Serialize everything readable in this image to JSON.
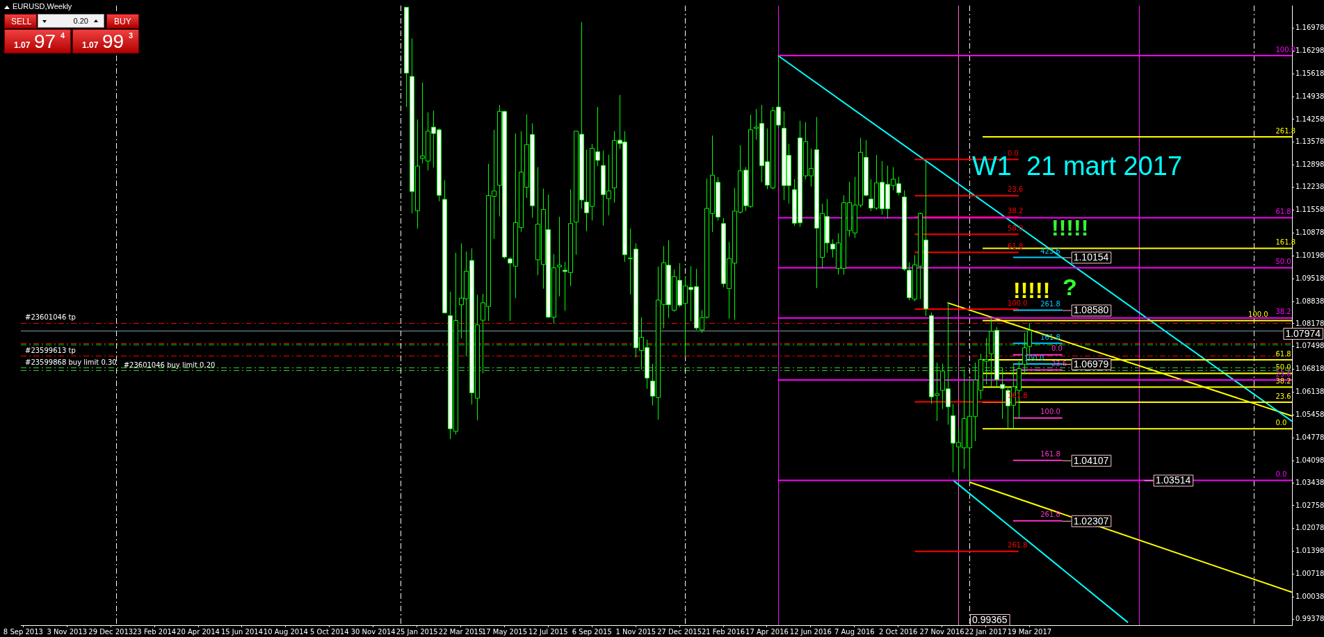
{
  "chart_data": {
    "type": "candlestick",
    "title": "EURUSD,Weekly",
    "subtitle": "W1  21 mart 2017",
    "color": "#00ff00",
    "colors": [
      "#ffffff",
      "#ffffff",
      "#000000",
      "#000000",
      "#000000",
      "#ffffff",
      "#ffffff",
      "#ffffff",
      "#ffffff",
      "#000000",
      "#000000",
      "#000000",
      "#ffffff",
      "#000000",
      "#000000",
      "#000000",
      "#000000",
      "#000000",
      "#ffffff",
      "#ffffff",
      "#000000",
      "#000000",
      "#000000",
      "#ffffff",
      "#000000",
      "#000000",
      "#ffffff",
      "#000000",
      "#000000",
      "#ffffff",
      "#000000",
      "#000000",
      "#ffffff",
      "#ffffff",
      "#000000",
      "#ffffff",
      "#ffffff",
      "#000000",
      "#000000",
      "#ffffff",
      "#ffffff",
      "#000000",
      "#ffffff",
      "#000000",
      "#ffffff",
      "#ffffff",
      "#000000",
      "#000000",
      "#ffffff",
      "#000000",
      "#ffffff",
      "#000000",
      "#ffffff",
      "#ffffff",
      "#000000",
      "#000000",
      "#000000",
      "#ffffff",
      "#ffffff",
      "#000000",
      "#000000",
      "#000000",
      "#ffffff",
      "#000000",
      "#000000",
      "#ffffff",
      "#ffffff",
      "#000000",
      "#ffffff",
      "#ffffff",
      "#ffffff",
      "#ffffff",
      "#ffffff",
      "#000000",
      "#000000",
      "#ffffff",
      "#000000",
      "#ffffff",
      "#ffffff",
      "#000000",
      "#000000",
      "#000000",
      "#000000",
      "#000000",
      "#ffffff",
      "#ffffff",
      "#000000",
      "#ffffff",
      "#ffffff",
      "#000000",
      "#ffffff",
      "#ffffff",
      "#ffffff",
      "#000000",
      "#000000",
      "#ffffff",
      "#ffffff",
      "#000000",
      "#000000",
      "#ffffff",
      "#ffffff",
      "#000000",
      "#000000",
      "#000000",
      "#000000",
      "#000000",
      "#000000",
      "#000000",
      "#ffffff",
      "#ffffff",
      "#ffffff",
      "#000000",
      "#000000",
      "#000000",
      "#000000"
    ],
    "x": [
      "2015-01-11",
      "2015-01-18",
      "2015-01-25",
      "2015-02-01",
      "2015-02-08",
      "2015-02-15",
      "2015-02-22",
      "2015-03-01",
      "2015-03-08",
      "2015-03-15",
      "2015-03-22",
      "2015-03-29",
      "2015-04-05",
      "2015-04-12",
      "2015-04-19",
      "2015-04-26",
      "2015-05-03",
      "2015-05-10",
      "2015-05-17",
      "2015-05-24",
      "2015-05-31",
      "2015-06-07",
      "2015-06-14",
      "2015-06-21",
      "2015-06-28",
      "2015-07-05",
      "2015-07-12",
      "2015-07-19",
      "2015-07-26",
      "2015-08-02",
      "2015-08-09",
      "2015-08-16",
      "2015-08-23",
      "2015-08-30",
      "2015-09-06",
      "2015-09-13",
      "2015-09-20",
      "2015-09-27",
      "2015-10-04",
      "2015-10-11",
      "2015-10-18",
      "2015-10-25",
      "2015-11-01",
      "2015-11-08",
      "2015-11-15",
      "2015-11-22",
      "2015-11-29",
      "2015-12-06",
      "2015-12-13",
      "2015-12-20",
      "2015-12-27",
      "2016-01-03",
      "2016-01-10",
      "2016-01-17",
      "2016-01-24",
      "2016-01-31",
      "2016-02-07",
      "2016-02-14",
      "2016-02-21",
      "2016-02-28",
      "2016-03-06",
      "2016-03-13",
      "2016-03-20",
      "2016-03-27",
      "2016-04-03",
      "2016-04-10",
      "2016-04-17",
      "2016-04-24",
      "2016-05-01",
      "2016-05-08",
      "2016-05-15",
      "2016-05-22",
      "2016-05-29",
      "2016-06-05",
      "2016-06-12",
      "2016-06-19",
      "2016-06-26",
      "2016-07-03",
      "2016-07-10",
      "2016-07-17",
      "2016-07-24",
      "2016-07-31",
      "2016-08-07",
      "2016-08-14",
      "2016-08-21",
      "2016-08-28",
      "2016-09-04",
      "2016-09-11",
      "2016-09-18",
      "2016-09-25",
      "2016-10-02",
      "2016-10-09",
      "2016-10-16",
      "2016-10-23",
      "2016-10-30",
      "2016-11-06",
      "2016-11-13",
      "2016-11-20",
      "2016-11-27",
      "2016-12-04",
      "2016-12-11",
      "2016-12-18",
      "2016-12-25",
      "2017-01-01",
      "2017-01-08",
      "2017-01-15",
      "2017-01-22",
      "2017-01-29",
      "2017-02-05",
      "2017-02-12",
      "2017-02-19",
      "2017-02-26",
      "2017-03-05",
      "2017-03-12",
      "2017-03-19"
    ],
    "ohlc": [
      [
        1.176,
        1.176,
        1.1463,
        1.1564
      ],
      [
        1.1554,
        1.1667,
        1.1146,
        1.1211
      ],
      [
        1.1154,
        1.1426,
        1.1101,
        1.1287
      ],
      [
        1.131,
        1.1536,
        1.1295,
        1.1317
      ],
      [
        1.1302,
        1.1447,
        1.1274,
        1.1391
      ],
      [
        1.1403,
        1.1452,
        1.1283,
        1.1384
      ],
      [
        1.1395,
        1.1399,
        1.1182,
        1.12
      ],
      [
        1.1188,
        1.1245,
        1.0848,
        1.085
      ],
      [
        1.0842,
        1.0913,
        1.0474,
        1.0505
      ],
      [
        1.0497,
        1.1029,
        1.0488,
        1.0827
      ],
      [
        1.0874,
        1.1057,
        1.0774,
        1.0894
      ],
      [
        1.0892,
        1.1033,
        1.0721,
        1.0974
      ],
      [
        1.1006,
        1.1042,
        1.0577,
        1.0612
      ],
      [
        1.0596,
        1.0904,
        1.053,
        1.0814
      ],
      [
        1.0828,
        1.0907,
        1.067,
        1.088
      ],
      [
        1.0869,
        1.1294,
        1.0826,
        1.1199
      ],
      [
        1.1197,
        1.1395,
        1.107,
        1.1213
      ],
      [
        1.123,
        1.1469,
        1.1137,
        1.145
      ],
      [
        1.145,
        1.1452,
        1.1011,
        1.1016
      ],
      [
        1.1011,
        1.1016,
        1.0826,
        1.0998
      ],
      [
        1.0989,
        1.1384,
        1.0894,
        1.1119
      ],
      [
        1.1104,
        1.1391,
        1.1091,
        1.1269
      ],
      [
        1.1224,
        1.1441,
        1.1192,
        1.1351
      ],
      [
        1.1381,
        1.1414,
        1.1133,
        1.1169
      ],
      [
        1.1008,
        1.1284,
        1.0962,
        1.1114
      ],
      [
        1.0994,
        1.122,
        1.0922,
        1.1158
      ],
      [
        1.1098,
        1.1202,
        1.0835,
        1.0837
      ],
      [
        1.0837,
        1.1025,
        1.0818,
        1.0984
      ],
      [
        1.0987,
        1.1136,
        1.0899,
        1.0992
      ],
      [
        1.0977,
        1.1002,
        1.0856,
        1.0973
      ],
      [
        1.097,
        1.1218,
        1.093,
        1.1116
      ],
      [
        1.112,
        1.1391,
        1.1023,
        1.1391
      ],
      [
        1.1382,
        1.1716,
        1.116,
        1.1186
      ],
      [
        1.118,
        1.1336,
        1.1093,
        1.1148
      ],
      [
        1.1167,
        1.1353,
        1.1125,
        1.134
      ],
      [
        1.133,
        1.1463,
        1.1287,
        1.1304
      ],
      [
        1.1289,
        1.1333,
        1.111,
        1.1202
      ],
      [
        1.119,
        1.1321,
        1.114,
        1.1213
      ],
      [
        1.1222,
        1.1391,
        1.1178,
        1.1363
      ],
      [
        1.1364,
        1.1499,
        1.1338,
        1.1354
      ],
      [
        1.1359,
        1.1391,
        1.1002,
        1.1023
      ],
      [
        1.1012,
        1.1101,
        1.0905,
        1.1013
      ],
      [
        1.104,
        1.1057,
        1.0717,
        1.0746
      ],
      [
        1.0738,
        1.0837,
        1.0681,
        1.0777
      ],
      [
        1.0747,
        1.077,
        1.0624,
        1.0656
      ],
      [
        1.0647,
        1.0698,
        1.0574,
        1.0602
      ],
      [
        1.0598,
        1.0988,
        1.0532,
        1.0888
      ],
      [
        1.0875,
        1.1049,
        1.0804,
        1.0999
      ],
      [
        1.0992,
        1.1066,
        1.0835,
        1.0874
      ],
      [
        1.0858,
        1.0979,
        1.0854,
        1.0958
      ],
      [
        1.0947,
        1.0998,
        1.0867,
        1.0873
      ],
      [
        1.0878,
        1.0956,
        1.0719,
        1.093
      ],
      [
        1.0926,
        1.0989,
        1.0825,
        1.0919
      ],
      [
        1.0928,
        1.0981,
        1.0799,
        1.0805
      ],
      [
        1.0799,
        1.0858,
        1.0791,
        1.0836
      ],
      [
        1.0837,
        1.125,
        1.0833,
        1.1161
      ],
      [
        1.1146,
        1.1378,
        1.1091,
        1.126
      ],
      [
        1.1239,
        1.1254,
        1.1125,
        1.1135
      ],
      [
        1.1116,
        1.1133,
        1.0926,
        1.0937
      ],
      [
        1.0922,
        1.1061,
        1.0833,
        1.1012
      ],
      [
        1.0998,
        1.1222,
        1.0829,
        1.1153
      ],
      [
        1.115,
        1.1349,
        1.1146,
        1.1273
      ],
      [
        1.1275,
        1.1284,
        1.1153,
        1.1169
      ],
      [
        1.1167,
        1.144,
        1.1163,
        1.1395
      ],
      [
        1.1399,
        1.1457,
        1.1366,
        1.1403
      ],
      [
        1.1414,
        1.1469,
        1.1239,
        1.1288
      ],
      [
        1.13,
        1.1399,
        1.1218,
        1.123
      ],
      [
        1.1222,
        1.1463,
        1.1218,
        1.1452
      ],
      [
        1.1463,
        1.1616,
        1.1399,
        1.1409
      ],
      [
        1.14,
        1.145,
        1.1186,
        1.1229
      ],
      [
        1.1319,
        1.1353,
        1.1175,
        1.1229
      ],
      [
        1.1217,
        1.1248,
        1.1109,
        1.1117
      ],
      [
        1.1371,
        1.1422,
        1.1106,
        1.1118
      ],
      [
        1.1258,
        1.1418,
        1.1248,
        1.136
      ],
      [
        1.1258,
        1.1339,
        1.1226,
        1.128
      ],
      [
        1.1336,
        1.1433,
        1.0924,
        1.1102
      ],
      [
        1.1015,
        1.1175,
        1.0982,
        1.1146
      ],
      [
        1.1137,
        1.1189,
        1.1029,
        1.1058
      ],
      [
        1.1055,
        1.1069,
        1.1015,
        1.104
      ],
      [
        1.0982,
        1.1087,
        1.0964,
        1.1058
      ],
      [
        1.0982,
        1.12,
        1.0964,
        1.1178
      ],
      [
        1.1095,
        1.124,
        1.1077,
        1.1178
      ],
      [
        1.1088,
        1.1255,
        1.1073,
        1.1171
      ],
      [
        1.1171,
        1.1371,
        1.1164,
        1.1328
      ],
      [
        1.1313,
        1.1364,
        1.1197,
        1.12
      ],
      [
        1.1189,
        1.1248,
        1.1153,
        1.1162
      ],
      [
        1.1162,
        1.132,
        1.1157,
        1.1237
      ],
      [
        1.1239,
        1.1302,
        1.1142,
        1.116
      ],
      [
        1.1233,
        1.1288,
        1.1131,
        1.116
      ],
      [
        1.1229,
        1.1284,
        1.1215,
        1.1248
      ],
      [
        1.1235,
        1.1255,
        1.12,
        1.1208
      ],
      [
        1.1195,
        1.1215,
        1.0975,
        1.098
      ],
      [
        1.0977,
        1.1,
        1.0888,
        1.0895
      ],
      [
        1.0891,
        1.1022,
        1.0884,
        1.0993
      ],
      [
        1.0989,
        1.1149,
        1.0891,
        1.1146
      ],
      [
        1.1067,
        1.13,
        1.084,
        1.0862
      ],
      [
        1.0842,
        1.0851,
        1.0579,
        1.06
      ],
      [
        1.0604,
        1.0702,
        1.0528,
        1.0609
      ],
      [
        1.0619,
        1.0699,
        1.0564,
        1.0677
      ],
      [
        1.0624,
        1.088,
        1.0517,
        1.057
      ],
      [
        1.0544,
        1.0579,
        1.0376,
        1.0462
      ],
      [
        1.0451,
        1.0506,
        1.0352,
        1.0464
      ],
      [
        1.0448,
        1.0681,
        1.0385,
        1.0535
      ],
      [
        1.0448,
        1.0655,
        1.0346,
        1.0542
      ],
      [
        1.0541,
        1.0702,
        1.0468,
        1.065
      ],
      [
        1.0619,
        1.0728,
        1.0593,
        1.0711
      ],
      [
        1.0706,
        1.0775,
        1.0637,
        1.0711
      ],
      [
        1.0728,
        1.0835,
        1.063,
        1.0795
      ],
      [
        1.0798,
        1.0808,
        1.0631,
        1.0651
      ],
      [
        1.0637,
        1.0688,
        1.0534,
        1.0625
      ],
      [
        1.0619,
        1.063,
        1.0506,
        1.0573
      ],
      [
        1.0575,
        1.0695,
        1.0506,
        1.063
      ],
      [
        1.0619,
        1.0706,
        1.0535,
        1.0684
      ],
      [
        1.0697,
        1.0791,
        1.0666,
        1.0746
      ],
      [
        1.075,
        1.082,
        1.0728,
        1.0797
      ]
    ],
    "series": [
      {
        "type": "line",
        "color": "#ff00ff",
        "x": [
          "2016-05-01",
          "2018-02-18"
        ],
        "values": [
          1.1616,
          1.1616
        ]
      },
      {
        "type": "line",
        "color": "#ff00ff",
        "x": [
          "2016-05-01",
          "2018-02-18"
        ],
        "values": [
          1.1133,
          1.1133
        ]
      },
      {
        "type": "line",
        "color": "#ff00ff",
        "x": [
          "2016-05-01",
          "2018-02-18"
        ],
        "values": [
          1.0984,
          1.0984
        ]
      },
      {
        "type": "line",
        "color": "#ff00ff",
        "x": [
          "2016-05-01",
          "2018-02-18"
        ],
        "values": [
          1.0835,
          1.0835
        ]
      },
      {
        "type": "line",
        "color": "#ff00ff",
        "x": [
          "2016-05-01",
          "2018-02-18"
        ],
        "values": [
          1.065,
          1.065
        ]
      },
      {
        "type": "line",
        "color": "#ff00ff",
        "x": [
          "2016-05-01",
          "2017-08-13",
          "2018-02-18"
        ],
        "values": [
          1.03514,
          1.03514,
          1.03514
        ]
      },
      {
        "type": "line",
        "color": "#ff0000",
        "x": [
          "2016-10-23",
          "2017-03-05"
        ],
        "values": [
          1.1307,
          1.1307
        ]
      },
      {
        "type": "line",
        "color": "#ff0000",
        "x": [
          "2016-10-23",
          "2017-03-05"
        ],
        "values": [
          1.1199,
          1.1199
        ]
      },
      {
        "type": "line",
        "color": "#ff0000",
        "x": [
          "2016-10-23",
          "2017-03-05"
        ],
        "values": [
          1.1135,
          1.1135
        ]
      },
      {
        "type": "line",
        "color": "#ff0000",
        "x": [
          "2016-10-23",
          "2017-03-05"
        ],
        "values": [
          1.1084,
          1.1084
        ]
      },
      {
        "type": "line",
        "color": "#ff0000",
        "x": [
          "2016-10-23",
          "2017-03-05"
        ],
        "values": [
          1.103,
          1.103
        ]
      },
      {
        "type": "line",
        "color": "#ff0000",
        "x": [
          "2016-10-23",
          "2017-03-05"
        ],
        "values": [
          1.0861,
          1.0861
        ]
      },
      {
        "type": "line",
        "color": "#ff0000",
        "x": [
          "2016-10-23",
          "2017-03-05"
        ],
        "values": [
          1.0585,
          1.0585
        ]
      },
      {
        "type": "line",
        "color": "#ff0000",
        "x": [
          "2016-10-23",
          "2017-03-05"
        ],
        "values": [
          1.014,
          1.014
        ]
      },
      {
        "type": "line",
        "color": "#ffff00",
        "x": [
          "2017-01-18",
          "2018-02-18"
        ],
        "values": [
          1.1374,
          1.1374
        ]
      },
      {
        "type": "line",
        "color": "#ffff00",
        "x": [
          "2017-01-18",
          "2018-02-18"
        ],
        "values": [
          1.1042,
          1.1042
        ]
      },
      {
        "type": "line",
        "color": "#ffff00",
        "x": [
          "2017-01-18",
          "2018-02-18"
        ],
        "values": [
          1.0827,
          1.0827
        ]
      },
      {
        "type": "line",
        "color": "#ffff00",
        "x": [
          "2017-01-18",
          "2018-02-18"
        ],
        "values": [
          1.071,
          1.071
        ]
      },
      {
        "type": "line",
        "color": "#ffff00",
        "x": [
          "2017-01-18",
          "2018-02-18"
        ],
        "values": [
          1.067,
          1.067
        ]
      },
      {
        "type": "line",
        "color": "#ffff00",
        "x": [
          "2017-01-18",
          "2018-02-18"
        ],
        "values": [
          1.0629,
          1.0629
        ]
      },
      {
        "type": "line",
        "color": "#ffff00",
        "x": [
          "2017-01-18",
          "2018-02-18"
        ],
        "values": [
          1.0584,
          1.0584
        ]
      },
      {
        "type": "line",
        "color": "#ffff00",
        "x": [
          "2017-01-18",
          "2018-02-18"
        ],
        "values": [
          1.0505,
          1.0505
        ]
      },
      {
        "type": "line",
        "color": "#ff33cc",
        "x": [
          "2017-02-26",
          "2017-04-30"
        ],
        "values": [
          1.0725,
          1.0725
        ]
      },
      {
        "type": "line",
        "color": "#ff33cc",
        "x": [
          "2017-02-26",
          "2017-04-30"
        ],
        "values": [
          1.068,
          1.068
        ]
      },
      {
        "type": "line",
        "color": "#ff33cc",
        "x": [
          "2017-02-26",
          "2017-04-30"
        ],
        "values": [
          1.0537,
          1.0537
        ]
      },
      {
        "type": "line",
        "color": "#ff33cc",
        "x": [
          "2017-02-26",
          "2017-04-30"
        ],
        "values": [
          1.04107,
          1.04107
        ]
      },
      {
        "type": "line",
        "color": "#ff33cc",
        "x": [
          "2017-02-26",
          "2017-04-30"
        ],
        "values": [
          1.02307,
          1.02307
        ]
      },
      {
        "type": "line",
        "color": "#00ccff",
        "x": [
          "2017-02-26",
          "2017-04-30"
        ],
        "values": [
          1.10154,
          1.10154
        ]
      },
      {
        "type": "line",
        "color": "#00ccff",
        "x": [
          "2017-02-26",
          "2017-04-30"
        ],
        "values": [
          1.0858,
          1.0858
        ]
      },
      {
        "type": "line",
        "color": "#00ccff",
        "x": [
          "2017-02-26",
          "2017-04-30"
        ],
        "values": [
          1.0759,
          1.0759
        ]
      },
      {
        "type": "line",
        "color": "#00ccff",
        "x": [
          "2017-02-26",
          "2017-04-30"
        ],
        "values": [
          1.06979,
          1.06979
        ]
      },
      {
        "type": "line",
        "color": "#00ffff",
        "x": [
          "2016-05-01",
          "2018-02-18"
        ],
        "values": [
          1.1616,
          1.0527
        ]
      },
      {
        "type": "line",
        "color": "#00ffff",
        "x": [
          "2016-12-11",
          "2017-07-23"
        ],
        "values": [
          1.0352,
          0.9928
        ]
      },
      {
        "type": "line",
        "color": "#ffff00",
        "x": [
          "2016-12-04",
          "2018-02-18"
        ],
        "values": [
          1.088,
          1.0543
        ]
      },
      {
        "type": "line",
        "color": "#ffff00",
        "x": [
          "2017-01-01",
          "2018-02-18"
        ],
        "values": [
          1.0346,
          1.0018
        ]
      }
    ],
    "ref_lines": [
      {
        "axis": "y",
        "value": 1.082,
        "label": "#23601046 tp",
        "color": "#ff0000",
        "line_style": "dashed"
      },
      {
        "axis": "y",
        "value": 1.07974,
        "color": "#8899aa"
      },
      {
        "axis": "y",
        "value": 1.076,
        "color": "#ff0000",
        "line_style": "dashed"
      },
      {
        "axis": "y",
        "value": 1.0756,
        "color": "#00cc00",
        "line_style": "dashed"
      },
      {
        "axis": "y",
        "value": 1.0722,
        "label": "#23599613 tp",
        "color": "#ff0000",
        "line_style": "dashed"
      },
      {
        "axis": "y",
        "value": 1.0687,
        "label": "#23599868 buy limit 0.30",
        "color": "#33cc33",
        "line_style": "dashed"
      },
      {
        "axis": "y",
        "value": 1.0679,
        "label": "#23601046 buy limit 0.20",
        "color": "#33cc33",
        "line_style": "dashed"
      },
      {
        "axis": "x",
        "value": "2014-01-05",
        "color": "#ffffff",
        "line_style": "dashed"
      },
      {
        "axis": "x",
        "value": "2015-01-04",
        "color": "#ffffff",
        "line_style": "dashed"
      },
      {
        "axis": "x",
        "value": "2016-01-03",
        "color": "#ffffff",
        "line_style": "dashed"
      },
      {
        "axis": "x",
        "value": "2017-01-01",
        "color": "#ffffff",
        "line_style": "dashed"
      },
      {
        "axis": "x",
        "value": "2017-12-31",
        "color": "#ffffff",
        "line_style": "dashed"
      },
      {
        "axis": "x",
        "value": "2016-05-01",
        "color": "#ff00ff"
      },
      {
        "axis": "x",
        "value": "2016-12-18",
        "color": "#ff66cc"
      },
      {
        "axis": "x",
        "value": "2017-08-06",
        "color": "#ff00ff"
      }
    ],
    "annotations": [
      "!!!!!",
      "!!!!!",
      "?",
      "SELL",
      "0.20",
      "BUY",
      "1.07",
      "97",
      "4",
      "1.07",
      "99",
      "3",
      {
        "text": "100.0",
        "x": "2018-01-28",
        "y": 1.1616
      },
      {
        "text": "61.8",
        "x": "2018-01-28",
        "y": 1.1133
      },
      {
        "text": "50.0",
        "x": "2018-01-28",
        "y": 1.0984
      },
      {
        "text": "38.2",
        "x": "2018-01-28",
        "y": 1.0835
      },
      {
        "text": "23.6",
        "x": "2018-01-28",
        "y": 1.065
      },
      {
        "text": "0.0",
        "x": "2018-01-28",
        "y": 1.03514
      },
      {
        "text": "0.0",
        "x": "2017-02-19",
        "y": 1.1307
      },
      {
        "text": "23.6",
        "x": "2017-02-19",
        "y": 1.1199
      },
      {
        "text": "38.2",
        "x": "2017-02-19",
        "y": 1.1135
      },
      {
        "text": "50.0",
        "x": "2017-02-19",
        "y": 1.1084
      },
      {
        "text": "61.8",
        "x": "2017-02-19",
        "y": 1.103
      },
      {
        "text": "100.0",
        "x": "2017-02-19",
        "y": 1.0861
      },
      {
        "text": "161.8",
        "x": "2017-02-19",
        "y": 1.0585
      },
      {
        "text": "261.8",
        "x": "2017-02-19",
        "y": 1.014
      },
      {
        "text": "261.8",
        "x": "2018-01-28",
        "y": 1.1374
      },
      {
        "text": "161.8",
        "x": "2018-01-28",
        "y": 1.1042
      },
      {
        "text": "100.0",
        "x": "2017-12-24",
        "y": 1.0827
      },
      {
        "text": "61.8",
        "x": "2018-01-28",
        "y": 1.071
      },
      {
        "text": "50.0",
        "x": "2018-01-28",
        "y": 1.067
      },
      {
        "text": "38.2",
        "x": "2018-01-28",
        "y": 1.0629
      },
      {
        "text": "23.6",
        "x": "2018-01-28",
        "y": 1.0584
      },
      {
        "text": "0.0",
        "x": "2018-01-28",
        "y": 1.0505
      },
      {
        "text": "0.0",
        "x": "2017-04-16",
        "y": 1.0725
      },
      {
        "text": "23.6",
        "x": "2017-04-16",
        "y": 1.068
      },
      {
        "text": "100.0",
        "x": "2017-04-02",
        "y": 1.0537
      },
      {
        "text": "161.8",
        "x": "2017-04-02",
        "y": 1.04107
      },
      {
        "text": "261.8",
        "x": "2017-04-02",
        "y": 1.02307
      },
      {
        "text": "423.6",
        "x": "2017-04-02",
        "y": 1.10154
      },
      {
        "text": "261.8",
        "x": "2017-04-02",
        "y": 1.0858
      },
      {
        "text": "161.8",
        "x": "2017-04-02",
        "y": 1.0759
      },
      {
        "text": "100.0",
        "x": "2017-03-12",
        "y": 1.06979
      },
      {
        "text": "1.10154",
        "x": "2017-04-30",
        "y": 1.10154
      },
      {
        "text": "1.08580",
        "x": "2017-04-30",
        "y": 1.0858
      },
      {
        "text": "1.06979",
        "x": "2017-04-30",
        "y": 1.06979
      },
      {
        "text": "1.04107",
        "x": "2017-04-30",
        "y": 1.04107
      },
      {
        "text": "1.02307",
        "x": "2017-04-30",
        "y": 1.02307
      },
      {
        "text": "1.03514",
        "x": "2017-08-13",
        "y": 1.03514
      },
      {
        "text": "0.99365",
        "x": "2017-01-01",
        "y": 0.99365
      },
      {
        "text": "1.07974",
        "x": "2018-02-18",
        "y": 1.07974
      }
    ],
    "xlim": [
      "2013-09-05",
      "2018-02-18"
    ],
    "xticks": [
      {
        "value": "2013-09-08",
        "label": "8 Sep 2013"
      },
      {
        "value": "2013-11-03",
        "label": "3 Nov 2013"
      },
      {
        "value": "2013-12-29",
        "label": "29 Dec 2013"
      },
      {
        "value": "2014-02-23",
        "label": "23 Feb 2014"
      },
      {
        "value": "2014-04-20",
        "label": "20 Apr 2014"
      },
      {
        "value": "2014-06-15",
        "label": "15 Jun 2014"
      },
      {
        "value": "2014-08-10",
        "label": "10 Aug 2014"
      },
      {
        "value": "2014-10-05",
        "label": "5 Oct 2014"
      },
      {
        "value": "2014-11-30",
        "label": "30 Nov 2014"
      },
      {
        "value": "2015-01-25",
        "label": "25 Jan 2015"
      },
      {
        "value": "2015-03-22",
        "label": "22 Mar 2015"
      },
      {
        "value": "2015-05-17",
        "label": "17 May 2015"
      },
      {
        "value": "2015-07-12",
        "label": "12 Jul 2015"
      },
      {
        "value": "2015-09-06",
        "label": "6 Sep 2015"
      },
      {
        "value": "2015-11-01",
        "label": "1 Nov 2015"
      },
      {
        "value": "2015-12-27",
        "label": "27 Dec 2015"
      },
      {
        "value": "2016-02-21",
        "label": "21 Feb 2016"
      },
      {
        "value": "2016-04-17",
        "label": "17 Apr 2016"
      },
      {
        "value": "2016-06-12",
        "label": "12 Jun 2016"
      },
      {
        "value": "2016-08-07",
        "label": "7 Aug 2016"
      },
      {
        "value": "2016-10-02",
        "label": "2 Oct 2016"
      },
      {
        "value": "2016-11-27",
        "label": "27 Nov 2016"
      },
      {
        "value": "2017-01-22",
        "label": "22 Jan 2017"
      },
      {
        "value": "2017-03-19",
        "label": "19 Mar 2017"
      }
    ],
    "ylim": [
      0.992,
      1.1765
    ],
    "yticks": [
      0.99378,
      1.00038,
      1.00718,
      1.01398,
      1.02078,
      1.02758,
      1.03438,
      1.04098,
      1.04778,
      1.05458,
      1.06138,
      1.06818,
      1.07498,
      1.08178,
      1.08838,
      1.09518,
      1.10198,
      1.10878,
      1.11558,
      1.12238,
      1.12898,
      1.13578,
      1.14258,
      1.14938,
      1.15618,
      1.16298,
      1.16978
    ],
    "grid": false,
    "legend": false
  }
}
